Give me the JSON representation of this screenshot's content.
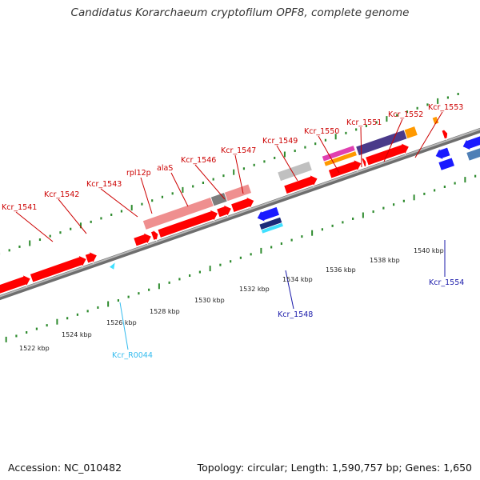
{
  "title": "Candidatus Korarchaeum cryptofilum OPF8, complete genome",
  "footer": {
    "accession": "Accession: NC_010482",
    "summary": "Topology: circular; Length: 1,590,757 bp; Genes: 1,650"
  },
  "colors": {
    "backbone": "#8c8c8c",
    "cds": "#ff0000",
    "rrna_light": "#ef8f8f",
    "rrna_dark": "#7c7c7c",
    "grey": "#c0c0c0",
    "magenta": "#e040b0",
    "orange": "#ff9900",
    "purple": "#4a3a8a",
    "blue": "#1a1aff",
    "steel": "#4f7fb6",
    "cyan": "#40e0ff",
    "navy": "#1a2a7a",
    "tick": "#2e8b2e",
    "label_red": "#cc0000",
    "label_blue": "#1a1aaa",
    "label_cyan": "#33bbee"
  },
  "kbp_ticks": [
    "1522 kbp",
    "1524 kbp",
    "1526 kbp",
    "1528 kbp",
    "1530 kbp",
    "1532 kbp",
    "1534 kbp",
    "1536 kbp",
    "1538 kbp",
    "1540 kbp"
  ],
  "gene_labels_top": [
    "Kcr_1541",
    "Kcr_1542",
    "Kcr_1543",
    "rpl12p",
    "alaS",
    "Kcr_1546",
    "Kcr_1547",
    "Kcr_1549",
    "Kcr_1550",
    "Kcr_1551",
    "Kcr_1552",
    "Kcr_1553"
  ],
  "gene_labels_bottom": [
    "Kcr_R0044",
    "Kcr_1548",
    "Kcr_1554"
  ]
}
